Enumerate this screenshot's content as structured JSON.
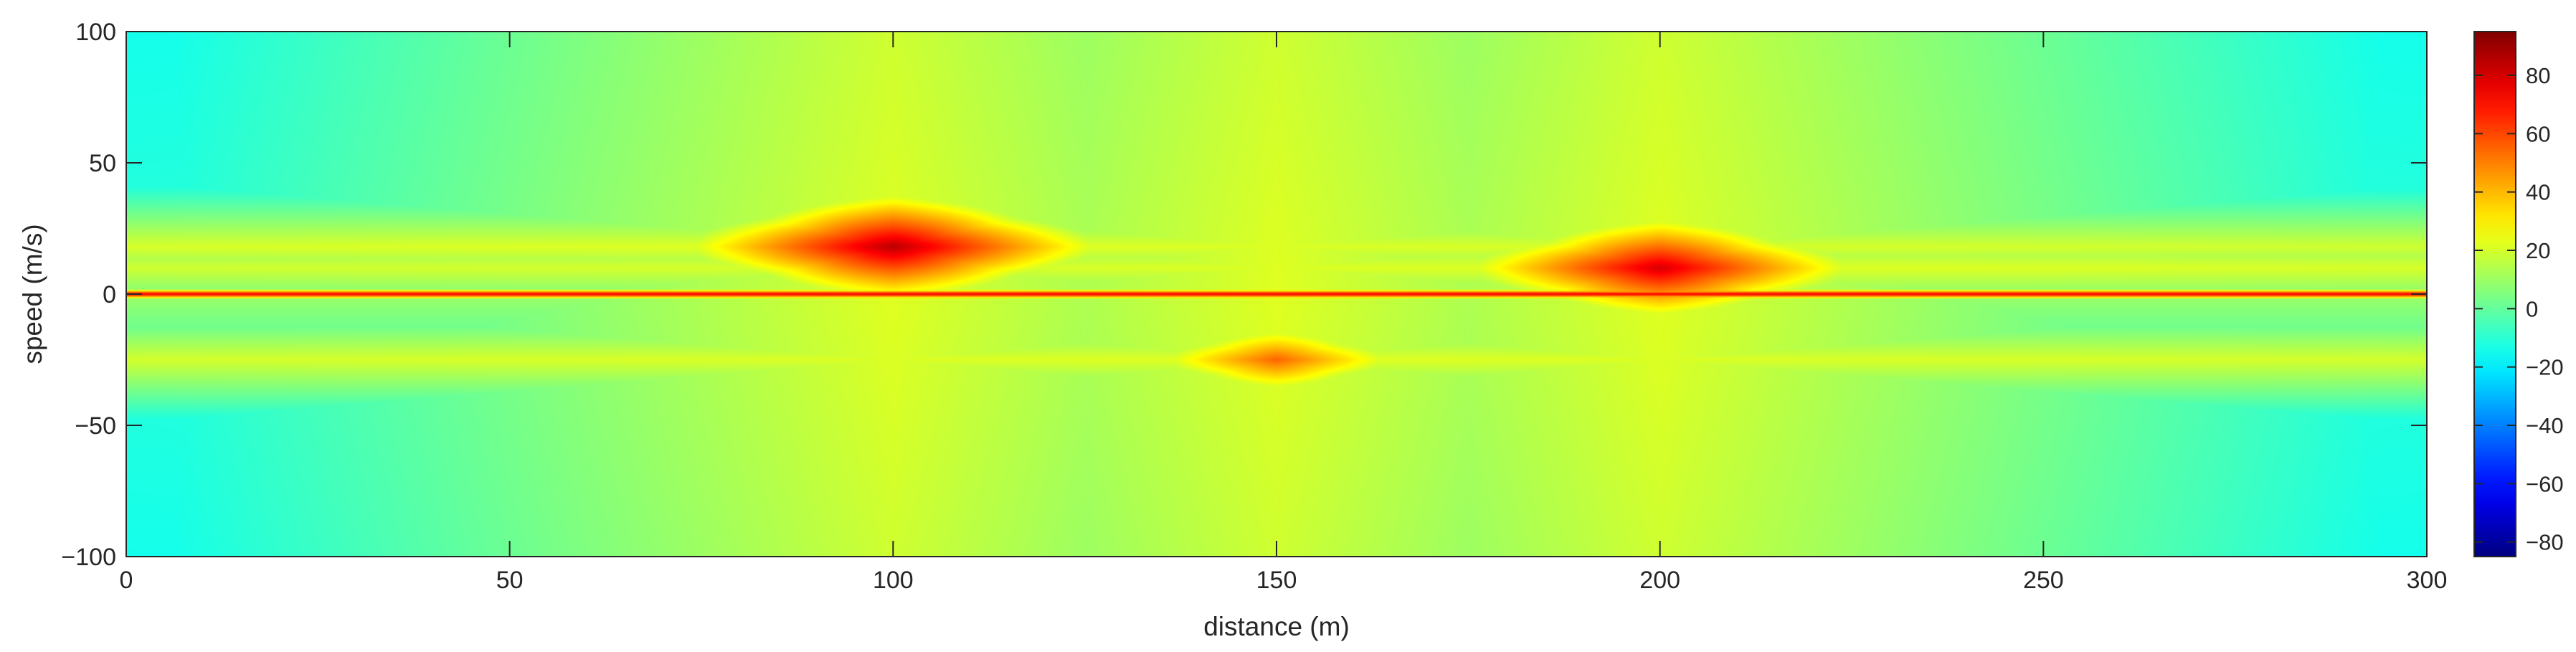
{
  "chart_data": {
    "type": "heatmap",
    "title": "",
    "xlabel": "distance (m)",
    "ylabel": "speed (m/s)",
    "xlim": [
      0,
      300
    ],
    "ylim": [
      -100,
      100
    ],
    "x_ticks": [
      0,
      50,
      100,
      150,
      200,
      250,
      300
    ],
    "y_ticks": [
      -100,
      -50,
      0,
      50,
      100
    ],
    "x_tick_labels": [
      "0",
      "50",
      "100",
      "150",
      "200",
      "250",
      "300"
    ],
    "y_tick_labels": [
      "−100",
      "−50",
      "0",
      "50",
      "100"
    ],
    "colorbar": {
      "colormap": "jet",
      "range": [
        -85,
        95
      ],
      "ticks": [
        -80,
        -60,
        -40,
        -20,
        0,
        20,
        40,
        60,
        80
      ],
      "tick_labels": [
        "−80",
        "−60",
        "−40",
        "−20",
        "0",
        "20",
        "40",
        "60",
        "80"
      ]
    },
    "background_level": -12,
    "targets": [
      {
        "distance": 100,
        "speed": 18,
        "peak": 85
      },
      {
        "distance": 150,
        "speed": -25,
        "peak": 55
      },
      {
        "distance": 200,
        "speed": 10,
        "peak": 80
      }
    ],
    "zero_speed_ridge": {
      "speed": 0,
      "level": 80
    },
    "grid": false,
    "legend": "none"
  }
}
